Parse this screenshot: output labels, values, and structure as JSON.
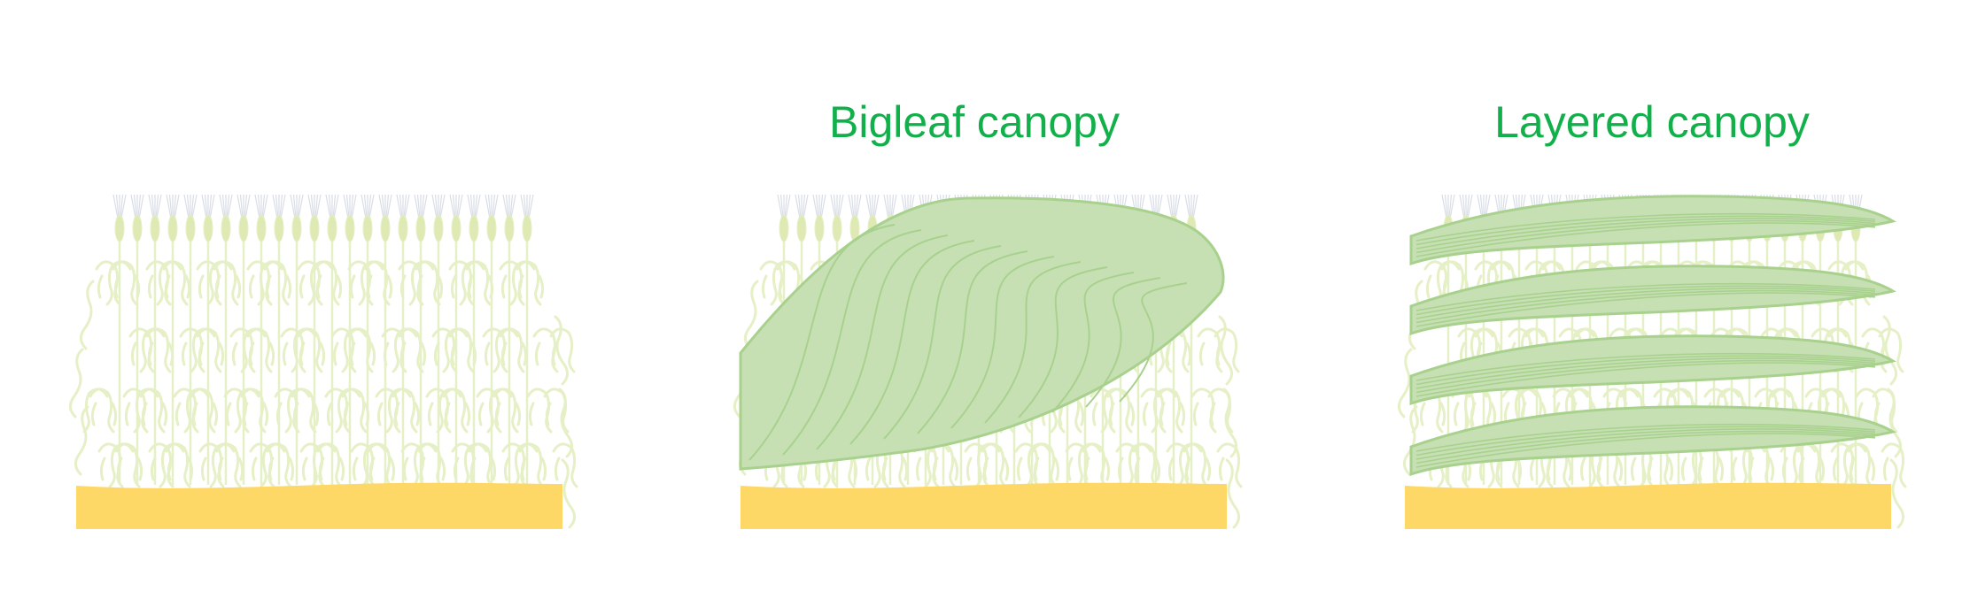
{
  "panels": [
    {
      "id": "crop-field",
      "title": ""
    },
    {
      "id": "bigleaf",
      "title": "Bigleaf canopy"
    },
    {
      "id": "layered",
      "title": "Layered canopy"
    }
  ],
  "colors": {
    "title": "#12b04a",
    "ground": "#fdd866",
    "crop_faint": "#e6f0c6",
    "crop_ear": "#dfe9b4",
    "awn": "#d8dde6",
    "leaf_fill": "#c6e0b4",
    "leaf_stroke": "#a9d18e",
    "leaf_vein": "#a9d18e"
  },
  "layered_canopy": {
    "layer_count": 4
  }
}
